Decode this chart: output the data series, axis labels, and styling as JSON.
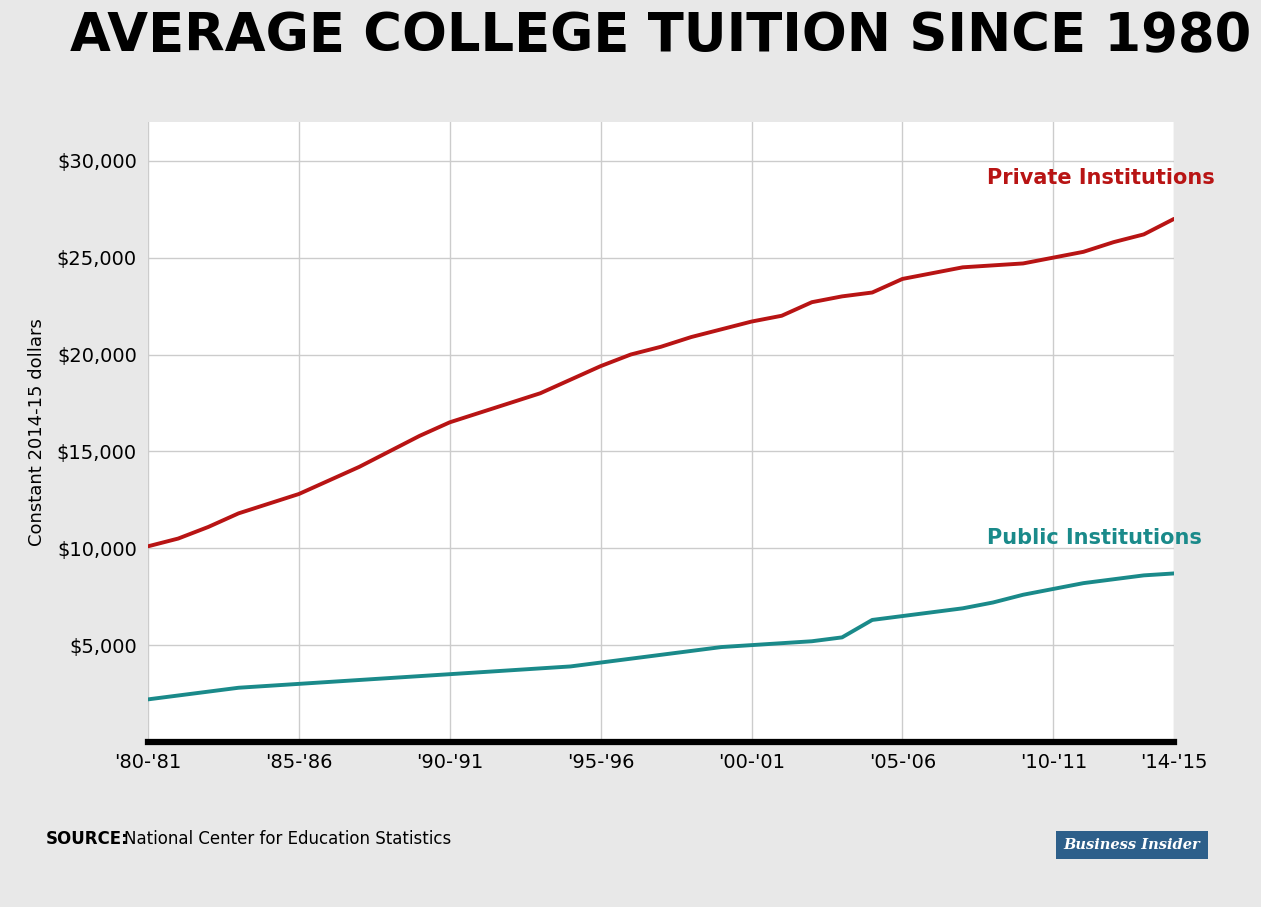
{
  "title": "AVERAGE COLLEGE TUITION SINCE 1980",
  "ylabel": "Constant 2014-15 dollars",
  "source_bold": "SOURCE:",
  "source_rest": " National Center for Education Statistics",
  "background_color": "#e8e8e8",
  "plot_background_color": "#ffffff",
  "private_color": "#b81414",
  "public_color": "#1a8a8a",
  "private_label": "Private Institutions",
  "public_label": "Public Institutions",
  "x_labels": [
    "'80-'81",
    "'85-'86",
    "'90-'91",
    "'95-'96",
    "'00-'01",
    "'05-'06",
    "'10-'11",
    "'14-'15"
  ],
  "x_positions": [
    0,
    5,
    10,
    15,
    20,
    25,
    30,
    34
  ],
  "years": [
    0,
    1,
    2,
    3,
    4,
    5,
    6,
    7,
    8,
    9,
    10,
    11,
    12,
    13,
    14,
    15,
    16,
    17,
    18,
    19,
    20,
    21,
    22,
    23,
    24,
    25,
    26,
    27,
    28,
    29,
    30,
    31,
    32,
    33,
    34
  ],
  "private_values": [
    10100,
    10500,
    11100,
    11800,
    12300,
    12800,
    13500,
    14200,
    15000,
    15800,
    16500,
    17000,
    17500,
    18000,
    18700,
    19400,
    20000,
    20400,
    20900,
    21300,
    21700,
    22000,
    22700,
    23000,
    23200,
    23900,
    24200,
    24500,
    24600,
    24700,
    25000,
    25300,
    25800,
    26200,
    27000
  ],
  "public_values": [
    2200,
    2400,
    2600,
    2800,
    2900,
    3000,
    3100,
    3200,
    3300,
    3400,
    3500,
    3600,
    3700,
    3800,
    3900,
    4100,
    4300,
    4500,
    4700,
    4900,
    5000,
    5100,
    5200,
    5400,
    6300,
    6500,
    6700,
    6900,
    7200,
    7600,
    7900,
    8200,
    8400,
    8600,
    8700
  ],
  "ylim": [
    0,
    32000
  ],
  "yticks": [
    5000,
    10000,
    15000,
    20000,
    25000,
    30000
  ],
  "ytick_labels": [
    "$5,000",
    "$10,000",
    "$15,000",
    "$20,000",
    "$25,000",
    "$30,000"
  ],
  "grid_color": "#cccccc",
  "title_fontsize": 38,
  "ylabel_fontsize": 13,
  "annotation_fontsize": 15,
  "tick_fontsize": 14,
  "source_fontsize": 12,
  "line_width": 2.8,
  "bi_logo_color": "#2d5f8a",
  "bi_logo_text": "Business Insider",
  "footer_color": "#cccccc"
}
